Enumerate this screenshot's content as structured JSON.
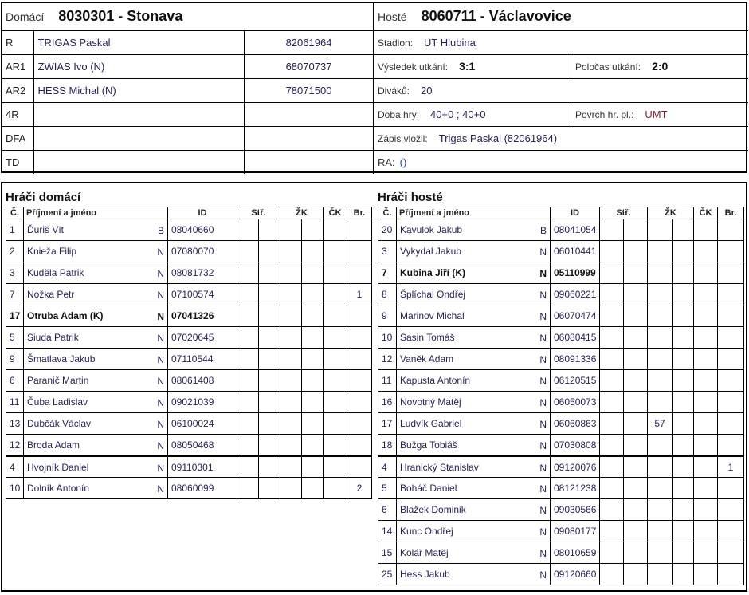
{
  "home": {
    "label": "Domácí",
    "title": "8030301 - Stonava"
  },
  "away": {
    "label": "Hosté",
    "title": "8060711 - Václavovice"
  },
  "officials": [
    {
      "role": "R",
      "name": "TRIGAS Paskal",
      "id": "82061964"
    },
    {
      "role": "AR1",
      "name": "ZWIAS Ivo (N)",
      "id": "68070737"
    },
    {
      "role": "AR2",
      "name": "HESS Michal (N)",
      "id": "78071500"
    },
    {
      "role": "4R",
      "name": "",
      "id": ""
    },
    {
      "role": "DFA",
      "name": "",
      "id": ""
    },
    {
      "role": "TD",
      "name": "",
      "id": ""
    }
  ],
  "match": {
    "stadium_label": "Stadion:",
    "stadium": "UT Hlubina",
    "result_label": "Výsledek utkání:",
    "result": "3:1",
    "halftime_label": "Poločas utkání:",
    "halftime": "2:0",
    "spectators_label": "Diváků:",
    "spectators": "20",
    "duration_label": "Doba hry:",
    "duration": "40+0 ; 40+0",
    "surface_label": "Povrch hr. pl.:",
    "surface": "UMT",
    "entered_label": "Zápis vložil:",
    "entered": "Trigas Paskal (82061964)",
    "ra_label": "RA:",
    "ra": "()"
  },
  "columns": {
    "no": "Č.",
    "name": "Příjmení a jméno",
    "id": "ID",
    "goals": "Stř.",
    "yellow": "ŽK",
    "red": "ČK",
    "goalsfor": "Br."
  },
  "home_players": {
    "title": "Hráči domácí",
    "starters": 11,
    "rows": [
      {
        "no": "1",
        "name": "Ďuriš Vít",
        "status": "B",
        "id": "08040660",
        "br": ""
      },
      {
        "no": "2",
        "name": "Knieža Filip",
        "status": "N",
        "id": "07080070",
        "br": ""
      },
      {
        "no": "3",
        "name": "Kuděla Patrik",
        "status": "N",
        "id": "08081732",
        "br": ""
      },
      {
        "no": "7",
        "name": "Nožka Petr",
        "status": "N",
        "id": "07100574",
        "br": "1"
      },
      {
        "no": "17",
        "name": "Otruba Adam (K)",
        "status": "N",
        "id": "07041326",
        "br": "",
        "captain": true
      },
      {
        "no": "5",
        "name": "Siuda Patrik",
        "status": "N",
        "id": "07020645",
        "br": ""
      },
      {
        "no": "9",
        "name": "Šmatlava Jakub",
        "status": "N",
        "id": "07110544",
        "br": ""
      },
      {
        "no": "6",
        "name": "Paranič Martin",
        "status": "N",
        "id": "08061408",
        "br": ""
      },
      {
        "no": "11",
        "name": "Čuba Ladislav",
        "status": "N",
        "id": "09021039",
        "br": ""
      },
      {
        "no": "13",
        "name": "Dubčák Václav",
        "status": "N",
        "id": "06100024",
        "br": ""
      },
      {
        "no": "12",
        "name": "Broda Adam",
        "status": "N",
        "id": "08050468",
        "br": ""
      },
      {
        "no": "4",
        "name": "Hvojník Daniel",
        "status": "N",
        "id": "09110301",
        "br": ""
      },
      {
        "no": "10",
        "name": "Dolník Antonín",
        "status": "N",
        "id": "08060099",
        "br": "2"
      }
    ]
  },
  "away_players": {
    "title": "Hráči hosté",
    "starters": 11,
    "rows": [
      {
        "no": "20",
        "name": "Kavulok Jakub",
        "status": "B",
        "id": "08041054",
        "br": ""
      },
      {
        "no": "3",
        "name": "Vykydal Jakub",
        "status": "N",
        "id": "06010441",
        "br": ""
      },
      {
        "no": "7",
        "name": "Kubina Jiří (K)",
        "status": "N",
        "id": "05110999",
        "br": "",
        "captain": true
      },
      {
        "no": "8",
        "name": "Šplíchal Ondřej",
        "status": "N",
        "id": "09060221",
        "br": ""
      },
      {
        "no": "9",
        "name": "Marinov Michal",
        "status": "N",
        "id": "06070474",
        "br": ""
      },
      {
        "no": "10",
        "name": "Sasin Tomáš",
        "status": "N",
        "id": "06080415",
        "br": ""
      },
      {
        "no": "12",
        "name": "Vaněk Adam",
        "status": "N",
        "id": "08091336",
        "br": ""
      },
      {
        "no": "11",
        "name": "Kapusta Antonín",
        "status": "N",
        "id": "06120515",
        "br": ""
      },
      {
        "no": "16",
        "name": "Novotný Matěj",
        "status": "N",
        "id": "06050073",
        "br": ""
      },
      {
        "no": "17",
        "name": "Ludvík Gabriel",
        "status": "N",
        "id": "06060863",
        "yk1": "57",
        "br": ""
      },
      {
        "no": "18",
        "name": "Bužga Tobiáš",
        "status": "N",
        "id": "07030808",
        "br": ""
      },
      {
        "no": "4",
        "name": "Hranický Stanislav",
        "status": "N",
        "id": "09120076",
        "br": "1"
      },
      {
        "no": "5",
        "name": "Boháč Daniel",
        "status": "N",
        "id": "08121238",
        "br": ""
      },
      {
        "no": "6",
        "name": "Blažek Dominik",
        "status": "N",
        "id": "09030566",
        "br": ""
      },
      {
        "no": "14",
        "name": "Kunc Ondřej",
        "status": "N",
        "id": "09080177",
        "br": ""
      },
      {
        "no": "15",
        "name": "Kolář Matěj",
        "status": "N",
        "id": "08010659",
        "br": ""
      },
      {
        "no": "25",
        "name": "Hess Jakub",
        "status": "N",
        "id": "09120660",
        "br": ""
      }
    ]
  }
}
